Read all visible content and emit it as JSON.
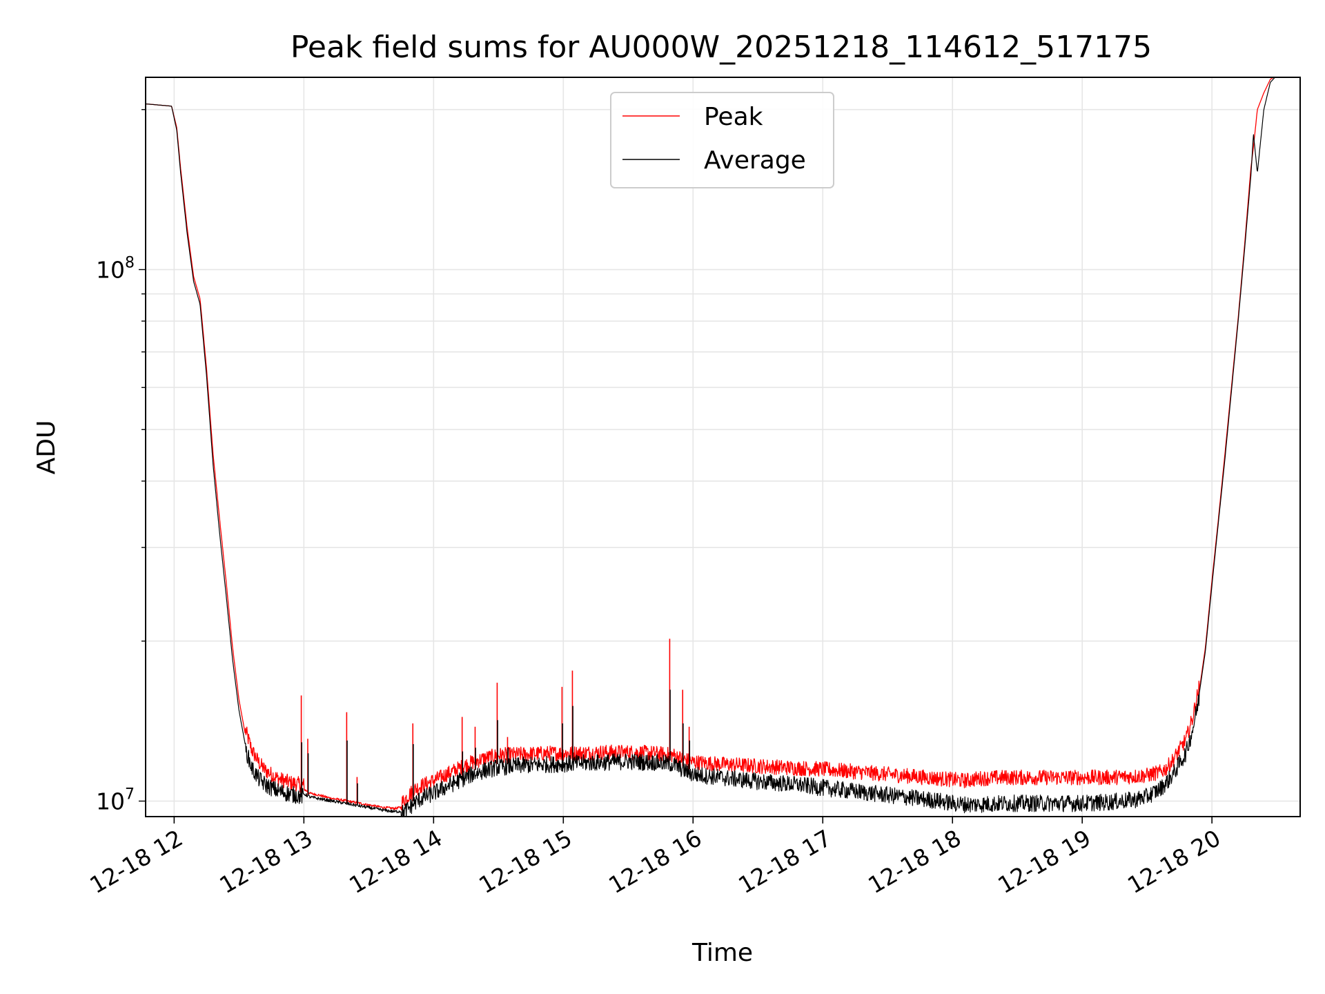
{
  "chart_data": {
    "type": "line",
    "title": "Peak field sums for AU000W_20251218_114612_517175",
    "xlabel": "Time",
    "ylabel": "ADU",
    "yscale": "log",
    "grid": true,
    "legend_position": "top-center",
    "xlim": [
      11.78,
      20.68
    ],
    "ylim": [
      9350000,
      230000000
    ],
    "x_ticks": [
      {
        "value": 12,
        "label": "12-18 12"
      },
      {
        "value": 13,
        "label": "12-18 13"
      },
      {
        "value": 14,
        "label": "12-18 14"
      },
      {
        "value": 15,
        "label": "12-18 15"
      },
      {
        "value": 16,
        "label": "12-18 16"
      },
      {
        "value": 17,
        "label": "12-18 17"
      },
      {
        "value": 18,
        "label": "12-18 18"
      },
      {
        "value": 19,
        "label": "12-18 19"
      },
      {
        "value": 20,
        "label": "12-18 20"
      }
    ],
    "y_ticks": [
      {
        "value": 10000000,
        "base": "10",
        "exp": "7"
      },
      {
        "value": 100000000,
        "base": "10",
        "exp": "8"
      }
    ],
    "series": [
      {
        "name": "Peak",
        "color": "#ff0000",
        "x": [
          11.78,
          11.98,
          12.02,
          12.05,
          12.1,
          12.15,
          12.2,
          12.25,
          12.3,
          12.35,
          12.4,
          12.45,
          12.5,
          12.55,
          12.6,
          12.65,
          12.7,
          12.8,
          12.9,
          13.0,
          13.05,
          13.1,
          13.2,
          13.3,
          13.4,
          13.5,
          13.6,
          13.7,
          13.75,
          13.8,
          13.85,
          13.9,
          14.0,
          14.1,
          14.2,
          14.3,
          14.4,
          14.5,
          14.7,
          14.9,
          15.0,
          15.1,
          15.3,
          15.5,
          15.6,
          15.7,
          15.85,
          15.9,
          16.0,
          16.2,
          16.5,
          16.8,
          17.0,
          17.3,
          17.6,
          17.9,
          18.0,
          18.1,
          18.2,
          18.4,
          18.6,
          18.8,
          19.0,
          19.2,
          19.4,
          19.5,
          19.6,
          19.65,
          19.7,
          19.8,
          19.85,
          19.9,
          19.95,
          20.0,
          20.05,
          20.1,
          20.15,
          20.2,
          20.25,
          20.3,
          20.32,
          20.35,
          20.4,
          20.45,
          20.5,
          20.55,
          20.6,
          20.68
        ],
        "y": [
          205000000,
          203000000,
          185000000,
          155000000,
          120000000,
          97000000,
          88000000,
          65000000,
          45000000,
          34000000,
          26000000,
          19500000,
          15500000,
          13300000,
          12200000,
          11600000,
          11200000,
          10800000,
          10600000,
          10500000,
          10300000,
          10250000,
          10100000,
          10000000,
          9900000,
          9800000,
          9700000,
          9650000,
          9700000,
          10000000,
          10300000,
          10450000,
          10700000,
          11000000,
          11300000,
          11600000,
          11800000,
          11950000,
          12000000,
          12050000,
          12050000,
          12050000,
          12100000,
          12100000,
          12080000,
          12050000,
          11950000,
          11800000,
          11600000,
          11500000,
          11400000,
          11300000,
          11250000,
          11100000,
          10950000,
          10800000,
          10750000,
          10700000,
          10800000,
          10850000,
          10850000,
          10850000,
          10850000,
          10850000,
          10900000,
          10950000,
          11100000,
          11300000,
          11700000,
          12800000,
          14000000,
          16000000,
          19500000,
          26000000,
          34000000,
          45000000,
          60000000,
          80000000,
          110000000,
          155000000,
          170000000,
          200000000,
          215000000,
          228000000,
          232000000,
          232000000,
          232000000,
          232000000
        ]
      },
      {
        "name": "Average",
        "color": "#000000",
        "x": [
          11.78,
          11.98,
          12.02,
          12.05,
          12.1,
          12.15,
          12.2,
          12.25,
          12.3,
          12.35,
          12.4,
          12.45,
          12.5,
          12.55,
          12.6,
          12.65,
          12.7,
          12.8,
          12.9,
          13.0,
          13.05,
          13.1,
          13.2,
          13.3,
          13.4,
          13.5,
          13.6,
          13.7,
          13.75,
          13.8,
          13.85,
          13.9,
          14.0,
          14.1,
          14.2,
          14.3,
          14.4,
          14.5,
          14.7,
          14.9,
          15.0,
          15.1,
          15.3,
          15.5,
          15.6,
          15.7,
          15.85,
          15.9,
          16.0,
          16.2,
          16.5,
          16.8,
          17.0,
          17.3,
          17.6,
          17.9,
          18.0,
          18.1,
          18.2,
          18.4,
          18.6,
          18.8,
          19.0,
          19.2,
          19.4,
          19.5,
          19.6,
          19.65,
          19.7,
          19.8,
          19.85,
          19.9,
          19.95,
          20.0,
          20.05,
          20.1,
          20.15,
          20.2,
          20.25,
          20.3,
          20.32,
          20.35,
          20.4,
          20.45,
          20.5,
          20.55,
          20.6,
          20.68
        ],
        "y": [
          205000000,
          203000000,
          183000000,
          152000000,
          117000000,
          95000000,
          86000000,
          63000000,
          43000000,
          32000000,
          24500000,
          18500000,
          14800000,
          12700000,
          11700000,
          11200000,
          10900000,
          10600000,
          10450000,
          10350000,
          10200000,
          10150000,
          10050000,
          9950000,
          9850000,
          9750000,
          9650000,
          9580000,
          9600000,
          9800000,
          10050000,
          10250000,
          10500000,
          10800000,
          11100000,
          11400000,
          11600000,
          11750000,
          11850000,
          11900000,
          11920000,
          11950000,
          12000000,
          12050000,
          12020000,
          12000000,
          11900000,
          11700000,
          11400000,
          11250000,
          11050000,
          10900000,
          10750000,
          10550000,
          10350000,
          10150000,
          10050000,
          10000000,
          10000000,
          10050000,
          10050000,
          10050000,
          10050000,
          10100000,
          10200000,
          10350000,
          10700000,
          11000000,
          11400000,
          12500000,
          13800000,
          15800000,
          19200000,
          25500000,
          33500000,
          44000000,
          59000000,
          79000000,
          108000000,
          150000000,
          180000000,
          152000000,
          200000000,
          225000000,
          232000000,
          232000000,
          232000000,
          232000000
        ]
      }
    ],
    "spikes": [
      {
        "x": 12.98,
        "peak": 15800000,
        "average": 12900000
      },
      {
        "x": 13.03,
        "peak": 13100000,
        "average": 12300000
      },
      {
        "x": 13.33,
        "peak": 14700000,
        "average": 13000000
      },
      {
        "x": 13.41,
        "peak": 11100000,
        "average": 10800000
      },
      {
        "x": 13.84,
        "peak": 14000000,
        "average": 12800000
      },
      {
        "x": 14.22,
        "peak": 14400000,
        "average": 12400000
      },
      {
        "x": 14.32,
        "peak": 13800000,
        "average": 12600000
      },
      {
        "x": 14.49,
        "peak": 16700000,
        "average": 14200000
      },
      {
        "x": 14.57,
        "peak": 13200000,
        "average": 12600000
      },
      {
        "x": 14.99,
        "peak": 16400000,
        "average": 14000000
      },
      {
        "x": 15.07,
        "peak": 17600000,
        "average": 15100000
      },
      {
        "x": 15.82,
        "peak": 20200000,
        "average": 16200000
      },
      {
        "x": 15.92,
        "peak": 16200000,
        "average": 14000000
      },
      {
        "x": 15.97,
        "peak": 13800000,
        "average": 13000000
      }
    ]
  }
}
